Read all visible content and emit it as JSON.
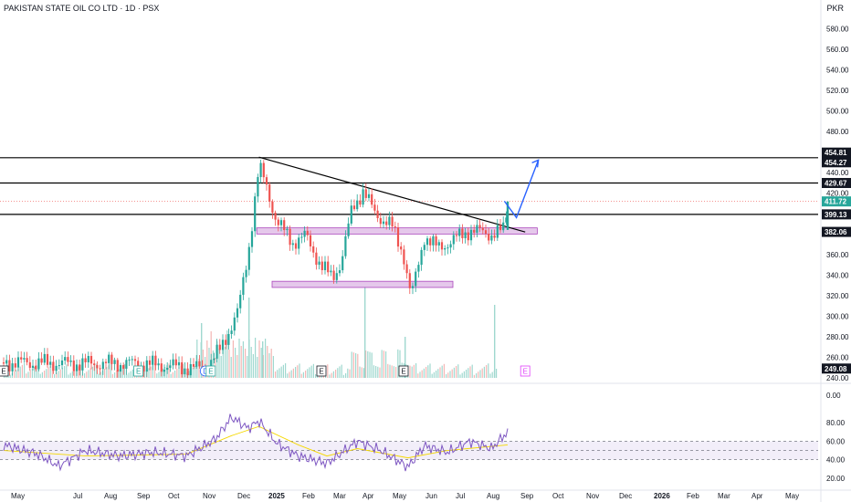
{
  "header": {
    "title": "PAKISTAN STATE OIL CO LTD · 1D · PSX",
    "currency": "PKR"
  },
  "colors": {
    "up": "#26a69a",
    "down": "#ef5350",
    "rsi": "#7e57c2",
    "rsi_ma": "#ffeb3b",
    "projection": "#2962ff",
    "zone_fill": "#e1bee7",
    "zone_border": "#ab47bc"
  },
  "chart_data": {
    "type": "candlestick",
    "instrument": "PAKISTAN STATE OIL CO LTD",
    "interval": "1D",
    "exchange": "PSX",
    "currency": "PKR",
    "y_axis_ticks": [
      "580.00",
      "560.00",
      "540.00",
      "520.00",
      "500.00",
      "480.00",
      "460.00",
      "440.00",
      "420.00",
      "400.00",
      "380.00",
      "360.00",
      "340.00",
      "320.00",
      "300.00",
      "280.00",
      "260.00",
      "240.00"
    ],
    "ylim": [
      240,
      590
    ],
    "x_axis_ticks": [
      "May",
      "Jul",
      "Aug",
      "Sep",
      "Oct",
      "Nov",
      "Dec",
      "2025",
      "Feb",
      "Mar",
      "Apr",
      "May",
      "Jun",
      "Jul",
      "Aug",
      "Sep",
      "Oct",
      "Nov",
      "Dec",
      "2026",
      "Feb",
      "Mar",
      "Apr",
      "May"
    ],
    "price_labels": [
      {
        "value": "454.81",
        "style": "dark"
      },
      {
        "value": "454.27",
        "style": "dark"
      },
      {
        "value": "429.67",
        "style": "dark"
      },
      {
        "value": "411.72",
        "style": "last"
      },
      {
        "value": "399.13",
        "style": "dark"
      },
      {
        "value": "382.06",
        "style": "dark"
      },
      {
        "value": "249.08",
        "style": "dark"
      }
    ],
    "horizontal_levels": [
      454.27,
      429.67,
      399.13
    ],
    "current_price": 411.72,
    "trendline": {
      "from": {
        "x": "2024-12-20",
        "y": 454.8
      },
      "to": {
        "x": "2025-08-20",
        "y": 382
      }
    },
    "zones": [
      {
        "x_from": "2024-12-18",
        "x_to": "2025-08-31",
        "y_low": 380,
        "y_high": 386
      },
      {
        "x_from": "2025-01-01",
        "x_to": "2025-06-15",
        "y_low": 328,
        "y_high": 334
      }
    ],
    "projection_path": [
      {
        "x": "2025-08-01",
        "y": 412
      },
      {
        "x": "2025-08-12",
        "y": 396
      },
      {
        "x": "2025-09-01",
        "y": 452
      }
    ],
    "price_path": [
      {
        "x": "2024-05-01",
        "y": 255
      },
      {
        "x": "2024-07-01",
        "y": 254
      },
      {
        "x": "2024-09-01",
        "y": 254
      },
      {
        "x": "2024-10-15",
        "y": 250
      },
      {
        "x": "2024-11-01",
        "y": 249
      },
      {
        "x": "2024-11-15",
        "y": 268
      },
      {
        "x": "2024-12-01",
        "y": 305
      },
      {
        "x": "2024-12-10",
        "y": 360
      },
      {
        "x": "2024-12-20",
        "y": 445
      },
      {
        "x": "2024-12-26",
        "y": 430
      },
      {
        "x": "2025-01-05",
        "y": 392
      },
      {
        "x": "2025-01-20",
        "y": 372
      },
      {
        "x": "2025-02-01",
        "y": 378
      },
      {
        "x": "2025-02-15",
        "y": 348
      },
      {
        "x": "2025-02-25",
        "y": 338
      },
      {
        "x": "2025-03-05",
        "y": 352
      },
      {
        "x": "2025-03-15",
        "y": 405
      },
      {
        "x": "2025-03-25",
        "y": 422
      },
      {
        "x": "2025-04-05",
        "y": 400
      },
      {
        "x": "2025-04-20",
        "y": 388
      },
      {
        "x": "2025-05-01",
        "y": 360
      },
      {
        "x": "2025-05-08",
        "y": 318
      },
      {
        "x": "2025-05-20",
        "y": 378
      },
      {
        "x": "2025-06-01",
        "y": 366
      },
      {
        "x": "2025-06-15",
        "y": 374
      },
      {
        "x": "2025-07-01",
        "y": 384
      },
      {
        "x": "2025-07-20",
        "y": 380
      },
      {
        "x": "2025-08-01",
        "y": 384
      },
      {
        "x": "2025-08-04",
        "y": 411.72
      }
    ],
    "volume_note": "volume histogram drawn along bottom of price pane",
    "event_markers": [
      {
        "label": "E",
        "x": "2024-05-01"
      },
      {
        "label": "E",
        "x": "2024-09-01"
      },
      {
        "label": "D",
        "x": "2024-11-01"
      },
      {
        "label": "E",
        "x": "2024-11-06"
      },
      {
        "label": "E",
        "x": "2025-02-15"
      },
      {
        "label": "E",
        "x": "2025-05-01"
      },
      {
        "label": "E",
        "x": "2025-08-20"
      }
    ],
    "rsi": {
      "y_axis_ticks": [
        "0.00",
        "80.00",
        "60.00",
        "40.00",
        "20.00"
      ],
      "levels": [
        60,
        50,
        40
      ],
      "band": [
        40,
        60
      ],
      "ylim": [
        10,
        95
      ],
      "rsi_path": [
        {
          "x": "2024-05-01",
          "y": 56
        },
        {
          "x": "2024-06-01",
          "y": 46
        },
        {
          "x": "2024-06-20",
          "y": 33
        },
        {
          "x": "2024-07-15",
          "y": 50
        },
        {
          "x": "2024-08-15",
          "y": 44
        },
        {
          "x": "2024-09-15",
          "y": 48
        },
        {
          "x": "2024-10-15",
          "y": 44
        },
        {
          "x": "2024-11-10",
          "y": 62
        },
        {
          "x": "2024-11-25",
          "y": 86
        },
        {
          "x": "2024-12-10",
          "y": 74
        },
        {
          "x": "2024-12-20",
          "y": 82
        },
        {
          "x": "2025-01-05",
          "y": 58
        },
        {
          "x": "2025-01-25",
          "y": 44
        },
        {
          "x": "2025-02-20",
          "y": 36
        },
        {
          "x": "2025-03-20",
          "y": 60
        },
        {
          "x": "2025-04-10",
          "y": 50
        },
        {
          "x": "2025-05-05",
          "y": 32
        },
        {
          "x": "2025-05-20",
          "y": 55
        },
        {
          "x": "2025-06-10",
          "y": 48
        },
        {
          "x": "2025-07-01",
          "y": 60
        },
        {
          "x": "2025-07-20",
          "y": 52
        },
        {
          "x": "2025-08-04",
          "y": 70
        }
      ],
      "ma_path": [
        {
          "x": "2024-05-01",
          "y": 50
        },
        {
          "x": "2024-07-15",
          "y": 44
        },
        {
          "x": "2024-10-15",
          "y": 46
        },
        {
          "x": "2024-11-25",
          "y": 66
        },
        {
          "x": "2024-12-20",
          "y": 76
        },
        {
          "x": "2025-01-25",
          "y": 56
        },
        {
          "x": "2025-02-20",
          "y": 44
        },
        {
          "x": "2025-03-20",
          "y": 52
        },
        {
          "x": "2025-05-05",
          "y": 42
        },
        {
          "x": "2025-06-10",
          "y": 50
        },
        {
          "x": "2025-08-04",
          "y": 56
        }
      ]
    }
  }
}
